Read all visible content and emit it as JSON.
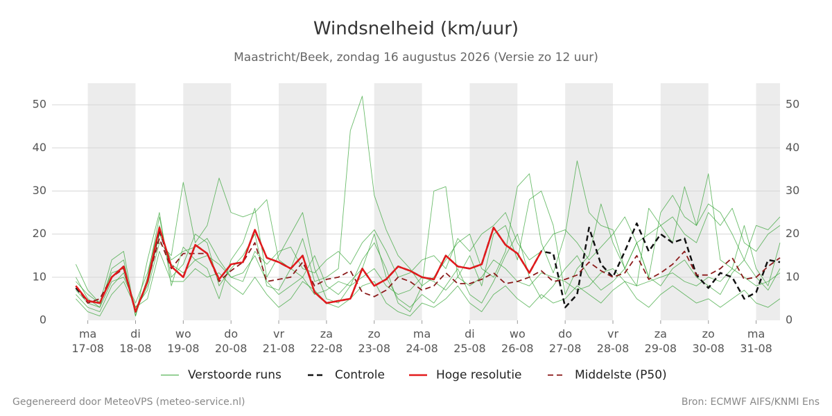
{
  "chart_data": {
    "type": "line",
    "title": "Windsnelheid (km/uur)",
    "subtitle": "Maastricht/Beek, zondag 16 augustus 2026 (Versie zo 12 uur)",
    "x": [
      16.75,
      17,
      17.25,
      17.5,
      17.75,
      18,
      18.25,
      18.5,
      18.75,
      19,
      19.25,
      19.5,
      19.75,
      20,
      20.25,
      20.5,
      20.75,
      21,
      21.25,
      21.5,
      21.75,
      22,
      22.25,
      22.5,
      22.75,
      23,
      23.25,
      23.5,
      23.75,
      24,
      24.25,
      24.5,
      24.75,
      25,
      25.25,
      25.5,
      25.75,
      26,
      26.25,
      26.5,
      26.75,
      27,
      27.25,
      27.5,
      27.75,
      28,
      28.25,
      28.5,
      28.75,
      29,
      29.25,
      29.5,
      29.75,
      30,
      30.25,
      30.5,
      30.75,
      31,
      31.25,
      31.5
    ],
    "xlim": [
      16.25,
      31.5
    ],
    "xticks": [
      {
        "value": 17,
        "label": "ma 17-08"
      },
      {
        "value": 18,
        "label": "di 18-08"
      },
      {
        "value": 19,
        "label": "wo 19-08"
      },
      {
        "value": 20,
        "label": "do 20-08"
      },
      {
        "value": 21,
        "label": "vr 21-08"
      },
      {
        "value": 22,
        "label": "za 22-08"
      },
      {
        "value": 23,
        "label": "zo 23-08"
      },
      {
        "value": 24,
        "label": "ma 24-08"
      },
      {
        "value": 25,
        "label": "di 25-08"
      },
      {
        "value": 26,
        "label": "wo 26-08"
      },
      {
        "value": 27,
        "label": "do 27-08"
      },
      {
        "value": 28,
        "label": "vr 28-08"
      },
      {
        "value": 29,
        "label": "za 29-08"
      },
      {
        "value": 30,
        "label": "zo 30-08"
      },
      {
        "value": 31,
        "label": "ma 31-08"
      }
    ],
    "ylim": [
      0,
      55
    ],
    "yticks": [
      0,
      10,
      20,
      30,
      40,
      50
    ],
    "grid": true,
    "legend": "bottom",
    "ensemble": {
      "name": "Verstoorde runs",
      "color": "#2ca02c",
      "runs": [
        [
          10,
          5,
          3,
          12,
          14,
          1,
          10,
          24,
          10,
          13,
          20,
          18,
          8,
          12,
          15,
          20,
          8,
          7,
          12,
          19,
          9,
          10,
          12,
          44,
          52,
          29,
          21,
          15,
          12,
          8,
          10,
          14,
          18,
          20,
          12,
          10,
          16,
          31,
          34,
          18,
          11,
          20,
          37,
          25,
          22,
          21,
          12,
          18,
          10,
          25,
          29,
          24,
          22,
          27,
          25,
          20,
          14,
          22,
          21,
          24
        ],
        [
          6,
          3,
          2,
          8,
          11,
          3,
          7,
          18,
          15,
          32,
          18,
          22,
          33,
          25,
          24,
          25,
          28,
          14,
          12,
          10,
          15,
          8,
          6,
          9,
          12,
          20,
          10,
          5,
          3,
          6,
          4,
          8,
          12,
          6,
          4,
          9,
          15,
          20,
          10,
          5,
          8,
          12,
          15,
          10,
          7,
          9,
          12,
          18,
          10,
          8,
          12,
          14,
          10,
          8,
          6,
          11,
          14,
          10,
          7,
          12
        ],
        [
          13,
          7,
          4,
          14,
          16,
          1,
          14,
          25,
          8,
          17,
          14,
          12,
          5,
          14,
          18,
          26,
          10,
          15,
          20,
          25,
          12,
          5,
          4,
          8,
          14,
          18,
          12,
          4,
          2,
          8,
          30,
          31,
          10,
          15,
          8,
          20,
          22,
          14,
          28,
          30,
          22,
          6,
          12,
          15,
          27,
          18,
          12,
          8,
          26,
          22,
          18,
          31,
          22,
          34,
          14,
          12,
          22,
          12,
          8,
          18
        ],
        [
          5,
          2,
          1,
          6,
          9,
          3,
          5,
          16,
          9,
          9,
          12,
          10,
          11,
          8,
          6,
          10,
          6,
          3,
          5,
          9,
          7,
          4,
          3,
          5,
          8,
          9,
          4,
          2,
          1,
          4,
          3,
          5,
          8,
          4,
          2,
          6,
          8,
          5,
          3,
          6,
          4,
          5,
          8,
          6,
          4,
          7,
          9,
          5,
          3,
          6,
          8,
          6,
          4,
          5,
          3,
          5,
          7,
          4,
          3,
          5
        ],
        [
          9,
          6,
          4,
          11,
          12,
          2,
          8,
          20,
          14,
          16,
          17,
          19,
          14,
          10,
          9,
          16,
          13,
          16,
          17,
          12,
          11,
          14,
          16,
          13,
          18,
          21,
          16,
          10,
          11,
          14,
          15,
          12,
          19,
          16,
          20,
          22,
          25,
          18,
          14,
          16,
          20,
          21,
          18,
          14,
          17,
          20,
          24,
          18,
          20,
          22,
          24,
          20,
          18,
          25,
          22,
          26,
          18,
          16,
          20,
          22
        ],
        [
          7,
          4,
          3,
          9,
          10,
          4,
          11,
          22,
          13,
          11,
          14,
          15,
          13,
          10,
          11,
          15,
          9,
          6,
          8,
          10,
          6,
          7,
          9,
          8,
          10,
          12,
          8,
          6,
          7,
          10,
          9,
          7,
          10,
          8,
          10,
          14,
          12,
          9,
          8,
          11,
          10,
          9,
          7,
          8,
          11,
          12,
          9,
          8,
          9,
          10,
          11,
          9,
          8,
          10,
          9,
          12,
          10,
          8,
          9,
          11
        ]
      ]
    },
    "series": [
      {
        "name": "Controle",
        "color": "#111111",
        "dash": true,
        "width": 2.5,
        "values": [
          7.5,
          4.5,
          4,
          10,
          12.5,
          2,
          9,
          21,
          12.5,
          10,
          17.5,
          15.5,
          9.5,
          13,
          13.5,
          21,
          14.5,
          13.5,
          12,
          15,
          6.5,
          4,
          4.5,
          5,
          12,
          8,
          9.5,
          12.5,
          11.5,
          10,
          9.5,
          15,
          12.5,
          12,
          13,
          21.5,
          17.5,
          15.5,
          11,
          16,
          15.5,
          3,
          6,
          21.5,
          13,
          10,
          16,
          22.5,
          16,
          20,
          18,
          19,
          10.5,
          7.5,
          11,
          10,
          5,
          6.5,
          14,
          13.5
        ]
      },
      {
        "name": "Hoge resolutie",
        "color": "#e31a1c",
        "dash": false,
        "width": 2.5,
        "values": [
          8,
          4.5,
          4,
          10,
          12.5,
          2,
          9,
          21.5,
          12.5,
          10,
          17.5,
          15.5,
          9.5,
          13,
          13.5,
          21,
          14.5,
          13.5,
          12,
          15,
          6.5,
          4,
          4.5,
          5,
          12,
          8,
          9.5,
          12.5,
          11.5,
          10,
          9.5,
          15,
          12.5,
          12,
          13,
          21.5,
          17.5,
          15.5,
          11,
          16,
          null,
          null,
          null,
          null,
          null,
          null,
          null,
          null,
          null,
          null,
          null,
          null,
          null,
          null,
          null,
          null,
          null,
          null,
          null,
          null
        ]
      },
      {
        "name": "Middelste (P50)",
        "color": "#8b1a1a",
        "dash": true,
        "width": 1.8,
        "values": [
          8,
          4,
          5,
          10,
          12,
          2,
          9,
          19,
          12,
          15.5,
          15.5,
          15.5,
          9,
          11.5,
          13.5,
          18,
          9,
          9.5,
          10,
          13.5,
          8,
          9.5,
          10,
          11.5,
          6.5,
          5.5,
          7,
          10,
          9,
          7,
          8,
          11,
          8.5,
          8.5,
          9.5,
          11,
          8.5,
          9,
          10,
          11.5,
          9,
          9.5,
          10.5,
          13.5,
          11.5,
          10,
          11,
          15,
          9.5,
          11,
          13,
          16,
          10.5,
          10.5,
          12,
          14.5,
          9.5,
          10,
          12.5,
          14.5
        ]
      }
    ],
    "footer_left": "Gegenereerd door MeteoVPS (meteo-service.nl)",
    "footer_right": "Bron: ECMWF AIFS/KNMI Ens"
  }
}
